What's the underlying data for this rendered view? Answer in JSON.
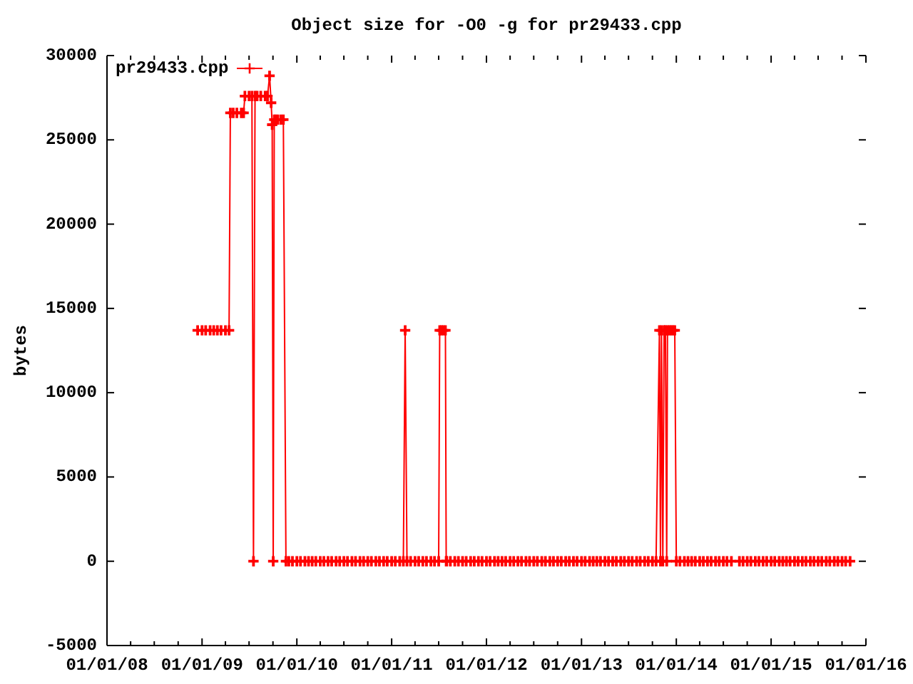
{
  "chart_data": {
    "type": "line",
    "title": "Object size for -O0 -g for pr29433.cpp",
    "ylabel": "bytes",
    "x": [
      "2008-12-15",
      "2009-01-01",
      "2009-01-15",
      "2009-02-01",
      "2009-02-15",
      "2009-03-01",
      "2009-03-15",
      "2009-04-01",
      "2009-04-15",
      "2009-04-20",
      "2009-05-01",
      "2009-05-15",
      "2009-06-01",
      "2009-06-10",
      "2009-06-15",
      "2009-07-01",
      "2009-07-12",
      "2009-07-18",
      "2009-07-24",
      "2009-08-01",
      "2009-08-15",
      "2009-09-01",
      "2009-09-10",
      "2009-09-18",
      "2009-09-24",
      "2009-09-28",
      "2009-10-02",
      "2009-10-06",
      "2009-10-12",
      "2009-10-20",
      "2009-11-01",
      "2009-11-10",
      "2009-11-20",
      "2009-12-01",
      "2009-12-15",
      "2010-01-01",
      "2010-01-15",
      "2010-02-01",
      "2010-02-15",
      "2010-03-01",
      "2010-03-15",
      "2010-04-01",
      "2010-04-15",
      "2010-05-01",
      "2010-05-15",
      "2010-06-01",
      "2010-06-15",
      "2010-07-01",
      "2010-07-15",
      "2010-08-01",
      "2010-08-15",
      "2010-09-01",
      "2010-09-15",
      "2010-10-01",
      "2010-10-15",
      "2010-11-01",
      "2010-11-15",
      "2010-12-01",
      "2010-12-15",
      "2011-01-01",
      "2011-01-15",
      "2011-02-01",
      "2011-02-15",
      "2011-02-22",
      "2011-03-01",
      "2011-03-15",
      "2011-04-01",
      "2011-04-15",
      "2011-05-01",
      "2011-05-15",
      "2011-06-01",
      "2011-06-15",
      "2011-07-01",
      "2011-07-05",
      "2011-07-12",
      "2011-07-19",
      "2011-07-27",
      "2011-07-30",
      "2011-08-01",
      "2011-08-15",
      "2011-09-01",
      "2011-09-15",
      "2011-10-01",
      "2011-10-15",
      "2011-11-01",
      "2011-11-15",
      "2011-12-01",
      "2011-12-15",
      "2012-01-01",
      "2012-01-15",
      "2012-02-01",
      "2012-02-15",
      "2012-03-01",
      "2012-03-15",
      "2012-04-01",
      "2012-04-15",
      "2012-05-01",
      "2012-05-15",
      "2012-06-01",
      "2012-06-15",
      "2012-07-01",
      "2012-07-15",
      "2012-08-01",
      "2012-08-15",
      "2012-09-01",
      "2012-09-15",
      "2012-10-01",
      "2012-10-15",
      "2012-11-01",
      "2012-11-15",
      "2012-12-01",
      "2012-12-15",
      "2013-01-01",
      "2013-01-15",
      "2013-02-01",
      "2013-02-15",
      "2013-03-01",
      "2013-03-15",
      "2013-04-01",
      "2013-04-15",
      "2013-05-01",
      "2013-05-15",
      "2013-06-01",
      "2013-06-15",
      "2013-07-01",
      "2013-07-15",
      "2013-08-01",
      "2013-08-15",
      "2013-09-01",
      "2013-09-15",
      "2013-10-01",
      "2013-10-15",
      "2013-10-28",
      "2013-11-01",
      "2013-11-05",
      "2013-11-10",
      "2013-11-15",
      "2013-11-20",
      "2013-11-25",
      "2013-11-28",
      "2013-12-05",
      "2013-12-12",
      "2013-12-19",
      "2013-12-26",
      "2014-01-01",
      "2014-01-15",
      "2014-02-01",
      "2014-02-15",
      "2014-03-01",
      "2014-03-15",
      "2014-04-01",
      "2014-04-15",
      "2014-05-01",
      "2014-05-15",
      "2014-06-01",
      "2014-06-15",
      "2014-07-01",
      "2014-07-15",
      "2014-08-01",
      "2014-09-01",
      "2014-09-15",
      "2014-10-01",
      "2014-10-15",
      "2014-11-01",
      "2014-11-15",
      "2014-12-01",
      "2014-12-15",
      "2015-01-01",
      "2015-01-15",
      "2015-02-01",
      "2015-02-15",
      "2015-03-01",
      "2015-03-15",
      "2015-04-01",
      "2015-04-15",
      "2015-05-01",
      "2015-05-15",
      "2015-06-01",
      "2015-06-15",
      "2015-07-01",
      "2015-07-15",
      "2015-08-01",
      "2015-08-15",
      "2015-09-01",
      "2015-09-15",
      "2015-10-01",
      "2015-10-15",
      "2015-11-01"
    ],
    "series": [
      {
        "name": "pr29433.cpp",
        "color": "#ff0000",
        "values": [
          13700,
          13700,
          13700,
          13700,
          13700,
          13700,
          13700,
          13700,
          13700,
          26600,
          26600,
          26600,
          26600,
          26600,
          27600,
          27600,
          27600,
          0,
          27600,
          27600,
          27600,
          27600,
          27600,
          28800,
          27200,
          25900,
          0,
          26200,
          26200,
          26200,
          26200,
          26200,
          0,
          0,
          0,
          0,
          0,
          0,
          0,
          0,
          0,
          0,
          0,
          0,
          0,
          0,
          0,
          0,
          0,
          0,
          0,
          0,
          0,
          0,
          0,
          0,
          0,
          0,
          0,
          0,
          0,
          0,
          0,
          13700,
          0,
          0,
          0,
          0,
          0,
          0,
          0,
          0,
          0,
          13700,
          13700,
          13700,
          13700,
          0,
          0,
          0,
          0,
          0,
          0,
          0,
          0,
          0,
          0,
          0,
          0,
          0,
          0,
          0,
          0,
          0,
          0,
          0,
          0,
          0,
          0,
          0,
          0,
          0,
          0,
          0,
          0,
          0,
          0,
          0,
          0,
          0,
          0,
          0,
          0,
          0,
          0,
          0,
          0,
          0,
          0,
          0,
          0,
          0,
          0,
          0,
          0,
          0,
          0,
          0,
          0,
          0,
          0,
          0,
          13700,
          0,
          13700,
          0,
          13700,
          13700,
          0,
          13700,
          13700,
          13700,
          13700,
          13700,
          0,
          0,
          0,
          0,
          0,
          0,
          0,
          0,
          0,
          0,
          0,
          0,
          0,
          0,
          0,
          0,
          0,
          0,
          0,
          0,
          0,
          0,
          0,
          0,
          0,
          0,
          0,
          0,
          0,
          0,
          0,
          0,
          0,
          0,
          0,
          0,
          0,
          0,
          0,
          0,
          0,
          0,
          0,
          0
        ]
      }
    ],
    "xlim": [
      "2008-01-01",
      "2016-01-01"
    ],
    "xticks": [
      {
        "value": "2008-01-01",
        "label": "01/01/08"
      },
      {
        "value": "2008-04-01",
        "label": null
      },
      {
        "value": "2008-07-01",
        "label": null
      },
      {
        "value": "2008-10-01",
        "label": null
      },
      {
        "value": "2009-01-01",
        "label": "01/01/09"
      },
      {
        "value": "2009-04-01",
        "label": null
      },
      {
        "value": "2009-07-01",
        "label": null
      },
      {
        "value": "2009-10-01",
        "label": null
      },
      {
        "value": "2010-01-01",
        "label": "01/01/10"
      },
      {
        "value": "2010-04-01",
        "label": null
      },
      {
        "value": "2010-07-01",
        "label": null
      },
      {
        "value": "2010-10-01",
        "label": null
      },
      {
        "value": "2011-01-01",
        "label": "01/01/11"
      },
      {
        "value": "2011-04-01",
        "label": null
      },
      {
        "value": "2011-07-01",
        "label": null
      },
      {
        "value": "2011-10-01",
        "label": null
      },
      {
        "value": "2012-01-01",
        "label": "01/01/12"
      },
      {
        "value": "2012-04-01",
        "label": null
      },
      {
        "value": "2012-07-01",
        "label": null
      },
      {
        "value": "2012-10-01",
        "label": null
      },
      {
        "value": "2013-01-01",
        "label": "01/01/13"
      },
      {
        "value": "2013-04-01",
        "label": null
      },
      {
        "value": "2013-07-01",
        "label": null
      },
      {
        "value": "2013-10-01",
        "label": null
      },
      {
        "value": "2014-01-01",
        "label": "01/01/14"
      },
      {
        "value": "2014-04-01",
        "label": null
      },
      {
        "value": "2014-07-01",
        "label": null
      },
      {
        "value": "2014-10-01",
        "label": null
      },
      {
        "value": "2015-01-01",
        "label": "01/01/15"
      },
      {
        "value": "2015-04-01",
        "label": null
      },
      {
        "value": "2015-07-01",
        "label": null
      },
      {
        "value": "2015-10-01",
        "label": null
      },
      {
        "value": "2016-01-01",
        "label": "01/01/16"
      }
    ],
    "ylim": [
      -5000,
      30000
    ],
    "yticks": [
      -5000,
      0,
      5000,
      10000,
      15000,
      20000,
      25000,
      30000
    ],
    "grid": false,
    "legend": "top left",
    "marker": "cross",
    "line_style": "solid"
  }
}
